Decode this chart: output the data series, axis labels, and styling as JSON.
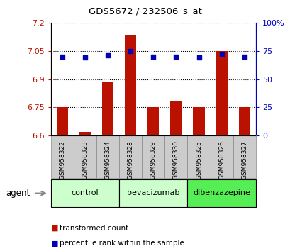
{
  "title": "GDS5672 / 232506_s_at",
  "samples": [
    "GSM958322",
    "GSM958323",
    "GSM958324",
    "GSM958328",
    "GSM958329",
    "GSM958330",
    "GSM958325",
    "GSM958326",
    "GSM958327"
  ],
  "transformed_count": [
    6.75,
    6.62,
    6.885,
    7.13,
    6.75,
    6.78,
    6.75,
    7.05,
    6.75
  ],
  "percentile_rank": [
    70,
    69,
    71,
    75,
    70,
    70,
    69,
    72,
    70
  ],
  "ylim_left": [
    6.6,
    7.2
  ],
  "ylim_right": [
    0,
    100
  ],
  "yticks_left": [
    6.6,
    6.75,
    6.9,
    7.05,
    7.2
  ],
  "yticks_right": [
    0,
    25,
    50,
    75,
    100
  ],
  "groups_info": [
    {
      "label": "control",
      "start": 0,
      "end": 2,
      "color": "#ccffcc"
    },
    {
      "label": "bevacizumab",
      "start": 3,
      "end": 5,
      "color": "#ccffcc"
    },
    {
      "label": "dibenzazepine",
      "start": 6,
      "end": 8,
      "color": "#55ee55"
    }
  ],
  "bar_color": "#bb1100",
  "dot_color": "#0000bb",
  "bar_bottom": 6.6,
  "right_axis_color": "#0000bb",
  "left_axis_color": "#bb1100",
  "agent_label": "agent",
  "legend_bar_label": "transformed count",
  "legend_dot_label": "percentile rank within the sample",
  "background_color": "#ffffff",
  "plot_bg_color": "#ffffff",
  "label_bg_color": "#cccccc"
}
